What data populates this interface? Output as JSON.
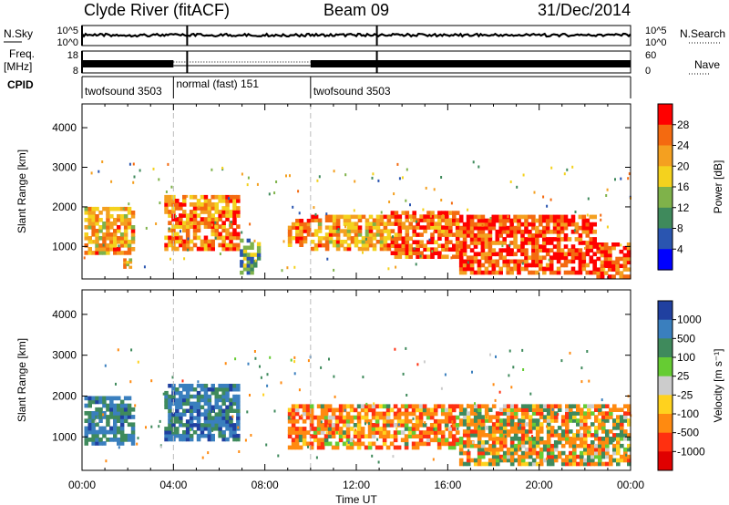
{
  "header": {
    "station": "Clyde River (fitACF)",
    "beam": "Beam 09",
    "date": "31/Dec/2014"
  },
  "side_labels": {
    "nsky": "N.Sky",
    "freq": "Freq.",
    "freq_unit": "[MHz]",
    "cpid": "CPID",
    "nsearch": "N.Search",
    "nave": "Nave"
  },
  "colors": {
    "frame": "#000000",
    "background": "#ffffff",
    "mode_boundary": "#bbbbbb"
  },
  "chart_data": [
    {
      "type": "line",
      "name": "noise-panel",
      "left_axis": {
        "label": "N.Sky",
        "ticks": [
          "10^0",
          "10^5"
        ],
        "scale": "log"
      },
      "right_axis": {
        "label": "N.Search",
        "ticks": [
          "10^0",
          "10^5"
        ],
        "scale": "log"
      },
      "x": {
        "range": [
          "00:00",
          "24:00"
        ]
      },
      "level_log10_approx": 2.8
    },
    {
      "type": "line",
      "name": "frequency-panel",
      "left_axis": {
        "label": "Freq. [MHz]",
        "ticks": [
          8,
          18
        ],
        "range": [
          8,
          18
        ]
      },
      "right_axis": {
        "label": "Nave",
        "ticks": [
          0,
          60
        ],
        "range": [
          0,
          60
        ]
      }
    },
    {
      "type": "table",
      "name": "cpid-panel",
      "segments": [
        {
          "label": "twofsound 3503",
          "start_hr": 0,
          "end_hr": 4.0
        },
        {
          "label": "normal (fast) 151",
          "start_hr": 4.0,
          "end_hr": 10.0
        },
        {
          "label": "twofsound 3503",
          "start_hr": 10.0,
          "end_hr": 24.0
        }
      ]
    },
    {
      "type": "heatmap",
      "title": "Power [dB]",
      "xlabel": "",
      "ylabel": "Slant Range [km]",
      "x_range_hr": [
        0,
        24
      ],
      "ylim": [
        180,
        4600
      ],
      "y_ticks": [
        1000,
        2000,
        3000,
        4000
      ],
      "colorbar": {
        "label": "Power [dB]",
        "ticks": [
          "4",
          "8",
          "12",
          "16",
          "20",
          "24",
          "28"
        ],
        "colors": [
          "#0000ff",
          "#2a55b0",
          "#3f8a5c",
          "#7fb24a",
          "#f4d21e",
          "#f4a020",
          "#f46a10",
          "#ff0000"
        ]
      },
      "echo_regions": [
        {
          "t0": 0.1,
          "t1": 2.3,
          "r0": 800,
          "r1": 2000,
          "value": 22
        },
        {
          "t0": 1.8,
          "t1": 2.3,
          "r0": 450,
          "r1": 700,
          "value": 20
        },
        {
          "t0": 3.6,
          "t1": 6.9,
          "r0": 900,
          "r1": 2300,
          "value": 24
        },
        {
          "t0": 6.9,
          "t1": 7.8,
          "r0": 300,
          "r1": 1200,
          "value": 12
        },
        {
          "t0": 9.0,
          "t1": 10.0,
          "r0": 1000,
          "r1": 1700,
          "value": 24
        },
        {
          "t0": 10.0,
          "t1": 13.5,
          "r0": 900,
          "r1": 1800,
          "value": 22
        },
        {
          "t0": 13.5,
          "t1": 16.5,
          "r0": 700,
          "r1": 1900,
          "value": 26
        },
        {
          "t0": 16.5,
          "t1": 22.5,
          "r0": 300,
          "r1": 1800,
          "value": 28
        },
        {
          "t0": 22.5,
          "t1": 24.0,
          "r0": 200,
          "r1": 1100,
          "value": 28
        }
      ]
    },
    {
      "type": "heatmap",
      "title": "Velocity [m s⁻¹]",
      "xlabel": "Time UT",
      "ylabel": "Slant Range [km]",
      "x_range_hr": [
        0,
        24
      ],
      "x_ticks": [
        "00:00",
        "04:00",
        "08:00",
        "12:00",
        "16:00",
        "20:00",
        "00:00"
      ],
      "ylim": [
        180,
        4600
      ],
      "y_ticks": [
        1000,
        2000,
        3000,
        4000
      ],
      "colorbar": {
        "label": "Velocity [m s⁻¹]",
        "ticks": [
          "1000",
          "500",
          "100",
          "25",
          "-25",
          "-100",
          "-500",
          "-1000"
        ],
        "colors": [
          "#2040a0",
          "#3a7fbe",
          "#3f8a5c",
          "#66cc33",
          "#cccccc",
          "#ffd21e",
          "#ff8a10",
          "#ff3010",
          "#e00000"
        ]
      },
      "echo_regions": [
        {
          "t0": 0.1,
          "t1": 2.3,
          "r0": 800,
          "r1": 2000,
          "value": 600
        },
        {
          "t0": 3.6,
          "t1": 6.9,
          "r0": 900,
          "r1": 2300,
          "value": 700
        },
        {
          "t0": 9.0,
          "t1": 16.5,
          "r0": 700,
          "r1": 1800,
          "value": -300
        },
        {
          "t0": 16.5,
          "t1": 24.0,
          "r0": 300,
          "r1": 1800,
          "value": -150
        }
      ]
    }
  ]
}
